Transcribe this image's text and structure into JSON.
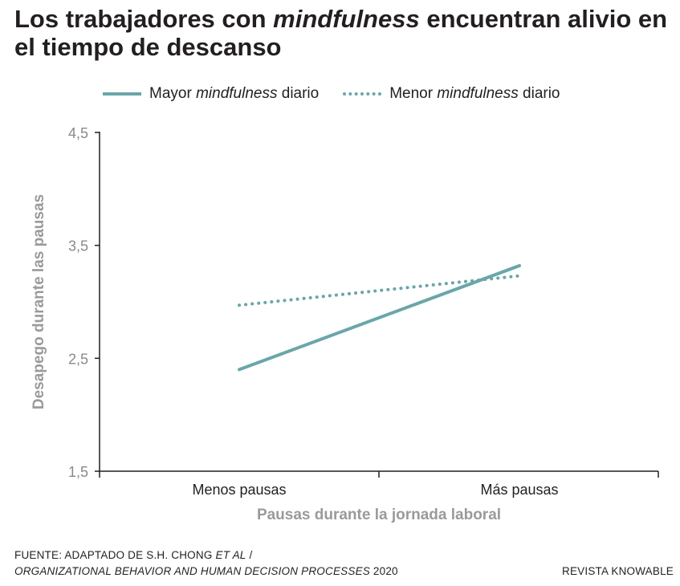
{
  "title": {
    "part1": "Los trabajadores con ",
    "emph": "mindfulness",
    "part2": " encuentran alivio en el tiempo de descanso"
  },
  "legend": [
    {
      "pre": "Mayor ",
      "emph": "mindfulness",
      "post": " diario",
      "style": "solid"
    },
    {
      "pre": "Menor ",
      "emph": "mindfulness",
      "post": " diario",
      "style": "dotted"
    }
  ],
  "colors": {
    "series": "#6aa6a9",
    "axis": "#231f20",
    "axis_label": "#9a9a9a",
    "tick_label": "#8a8a8a"
  },
  "chart_data": {
    "type": "line",
    "categories": [
      "Menos pausas",
      "Más pausas"
    ],
    "series": [
      {
        "name": "Mayor mindfulness diario",
        "values": [
          2.4,
          3.32
        ],
        "line_style": "solid"
      },
      {
        "name": "Menor mindfulness diario",
        "values": [
          2.97,
          3.23
        ],
        "line_style": "dotted"
      }
    ],
    "xlabel": "Pausas durante la jornada laboral",
    "ylabel": "Desapego durante las pausas",
    "ylim": [
      1.5,
      4.5
    ],
    "yticks": [
      "1,5",
      "2,5",
      "3,5",
      "4,5"
    ],
    "ytick_values": [
      1.5,
      2.5,
      3.5,
      4.5
    ],
    "grid": false,
    "legend_position": "top"
  },
  "source": {
    "line1_pre": "FUENTE: ADAPTADO DE S.H. CHONG ",
    "line1_emph": "ET AL",
    "line1_post": " /",
    "line2_emph": "ORGANIZATIONAL BEHAVIOR AND HUMAN DECISION PROCESSES",
    "line2_post": " 2020"
  },
  "credit": "REVISTA KNOWABLE"
}
